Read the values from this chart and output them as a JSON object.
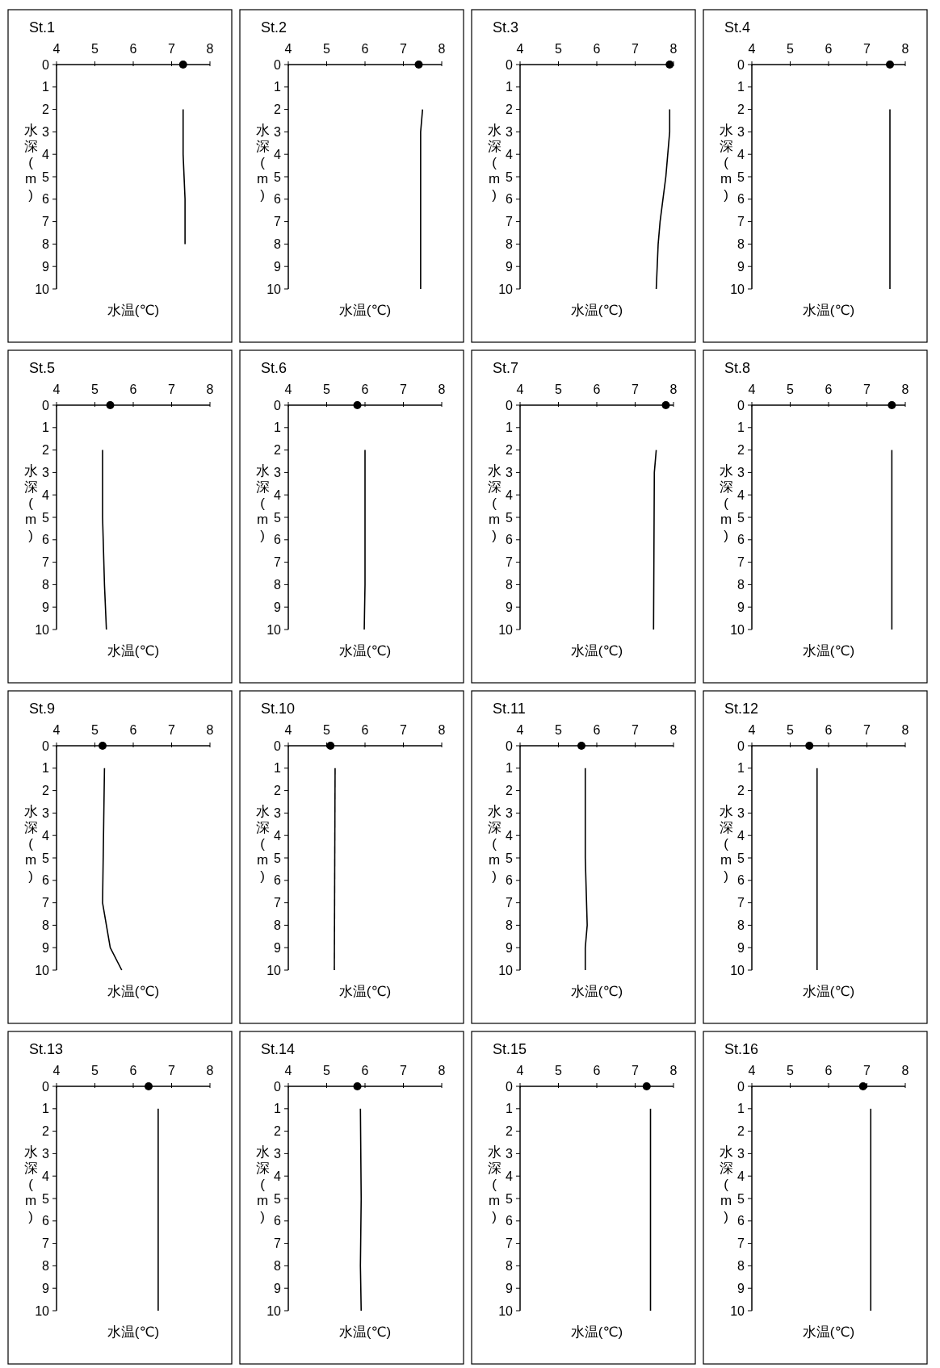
{
  "chart_data": [
    {
      "type": "line",
      "title": "St.1",
      "xlabel": "水温(℃)",
      "ylabel": "水深(m)",
      "xlim": [
        4,
        8
      ],
      "xticks": [
        4,
        5,
        6,
        7,
        8
      ],
      "ylim": [
        10,
        0
      ],
      "yticks": [
        0,
        1,
        2,
        3,
        4,
        5,
        6,
        7,
        8,
        9,
        10
      ],
      "grid": false,
      "series": [
        {
          "type": "scatter",
          "marker": "circle",
          "color": "#000000",
          "x": [
            7.3
          ],
          "values": [
            0
          ]
        },
        {
          "type": "line",
          "marker": "none",
          "color": "#000000",
          "x": [
            7.3,
            7.3,
            7.35,
            7.35
          ],
          "values": [
            2,
            4,
            6,
            8
          ]
        }
      ]
    },
    {
      "type": "line",
      "title": "St.2",
      "xlabel": "水温(℃)",
      "ylabel": "水深(m)",
      "xlim": [
        4,
        8
      ],
      "xticks": [
        4,
        5,
        6,
        7,
        8
      ],
      "ylim": [
        10,
        0
      ],
      "yticks": [
        0,
        1,
        2,
        3,
        4,
        5,
        6,
        7,
        8,
        9,
        10
      ],
      "grid": false,
      "series": [
        {
          "type": "scatter",
          "marker": "circle",
          "color": "#000000",
          "x": [
            7.4
          ],
          "values": [
            0
          ]
        },
        {
          "type": "line",
          "marker": "none",
          "color": "#000000",
          "x": [
            7.5,
            7.45,
            7.45
          ],
          "values": [
            2,
            3,
            10
          ]
        }
      ]
    },
    {
      "type": "line",
      "title": "St.3",
      "xlabel": "水温(℃)",
      "ylabel": "水深(m)",
      "xlim": [
        4,
        8
      ],
      "xticks": [
        4,
        5,
        6,
        7,
        8
      ],
      "ylim": [
        10,
        0
      ],
      "yticks": [
        0,
        1,
        2,
        3,
        4,
        5,
        6,
        7,
        8,
        9,
        10
      ],
      "grid": false,
      "series": [
        {
          "type": "scatter",
          "marker": "circle",
          "color": "#000000",
          "x": [
            7.9
          ],
          "values": [
            0
          ]
        },
        {
          "type": "line",
          "marker": "none",
          "color": "#000000",
          "x": [
            7.9,
            7.9,
            7.8,
            7.65,
            7.6,
            7.55
          ],
          "values": [
            2,
            3,
            5,
            7,
            8,
            10
          ]
        }
      ]
    },
    {
      "type": "line",
      "title": "St.4",
      "xlabel": "水温(℃)",
      "ylabel": "水深(m)",
      "xlim": [
        4,
        8
      ],
      "xticks": [
        4,
        5,
        6,
        7,
        8
      ],
      "ylim": [
        10,
        0
      ],
      "yticks": [
        0,
        1,
        2,
        3,
        4,
        5,
        6,
        7,
        8,
        9,
        10
      ],
      "grid": false,
      "series": [
        {
          "type": "scatter",
          "marker": "circle",
          "color": "#000000",
          "x": [
            7.6
          ],
          "values": [
            0
          ]
        },
        {
          "type": "line",
          "marker": "none",
          "color": "#000000",
          "x": [
            7.6,
            7.6
          ],
          "values": [
            2,
            10
          ]
        }
      ]
    },
    {
      "type": "line",
      "title": "St.5",
      "xlabel": "水温(℃)",
      "ylabel": "水深(m)",
      "xlim": [
        4,
        8
      ],
      "xticks": [
        4,
        5,
        6,
        7,
        8
      ],
      "ylim": [
        10,
        0
      ],
      "yticks": [
        0,
        1,
        2,
        3,
        4,
        5,
        6,
        7,
        8,
        9,
        10
      ],
      "grid": false,
      "series": [
        {
          "type": "scatter",
          "marker": "circle",
          "color": "#000000",
          "x": [
            5.4
          ],
          "values": [
            0
          ]
        },
        {
          "type": "line",
          "marker": "none",
          "color": "#000000",
          "x": [
            5.2,
            5.2,
            5.25,
            5.3
          ],
          "values": [
            2,
            5,
            8,
            10
          ]
        }
      ]
    },
    {
      "type": "line",
      "title": "St.6",
      "xlabel": "水温(℃)",
      "ylabel": "水深(m)",
      "xlim": [
        4,
        8
      ],
      "xticks": [
        4,
        5,
        6,
        7,
        8
      ],
      "ylim": [
        10,
        0
      ],
      "yticks": [
        0,
        1,
        2,
        3,
        4,
        5,
        6,
        7,
        8,
        9,
        10
      ],
      "grid": false,
      "series": [
        {
          "type": "scatter",
          "marker": "circle",
          "color": "#000000",
          "x": [
            5.8
          ],
          "values": [
            0
          ]
        },
        {
          "type": "line",
          "marker": "none",
          "color": "#000000",
          "x": [
            6.0,
            6.0,
            5.98
          ],
          "values": [
            2,
            8,
            10
          ]
        }
      ]
    },
    {
      "type": "line",
      "title": "St.7",
      "xlabel": "水温(℃)",
      "ylabel": "水深(m)",
      "xlim": [
        4,
        8
      ],
      "xticks": [
        4,
        5,
        6,
        7,
        8
      ],
      "ylim": [
        10,
        0
      ],
      "yticks": [
        0,
        1,
        2,
        3,
        4,
        5,
        6,
        7,
        8,
        9,
        10
      ],
      "grid": false,
      "series": [
        {
          "type": "scatter",
          "marker": "circle",
          "color": "#000000",
          "x": [
            7.8
          ],
          "values": [
            0
          ]
        },
        {
          "type": "line",
          "marker": "none",
          "color": "#000000",
          "x": [
            7.55,
            7.5,
            7.48
          ],
          "values": [
            2,
            3,
            10
          ]
        }
      ]
    },
    {
      "type": "line",
      "title": "St.8",
      "xlabel": "水温(℃)",
      "ylabel": "水深(m)",
      "xlim": [
        4,
        8
      ],
      "xticks": [
        4,
        5,
        6,
        7,
        8
      ],
      "ylim": [
        10,
        0
      ],
      "yticks": [
        0,
        1,
        2,
        3,
        4,
        5,
        6,
        7,
        8,
        9,
        10
      ],
      "grid": false,
      "series": [
        {
          "type": "scatter",
          "marker": "circle",
          "color": "#000000",
          "x": [
            7.65
          ],
          "values": [
            0
          ]
        },
        {
          "type": "line",
          "marker": "none",
          "color": "#000000",
          "x": [
            7.65,
            7.65
          ],
          "values": [
            2,
            10
          ]
        }
      ]
    },
    {
      "type": "line",
      "title": "St.9",
      "xlabel": "水温(℃)",
      "ylabel": "水深(m)",
      "xlim": [
        4,
        8
      ],
      "xticks": [
        4,
        5,
        6,
        7,
        8
      ],
      "ylim": [
        10,
        0
      ],
      "yticks": [
        0,
        1,
        2,
        3,
        4,
        5,
        6,
        7,
        8,
        9,
        10
      ],
      "grid": false,
      "series": [
        {
          "type": "scatter",
          "marker": "circle",
          "color": "#000000",
          "x": [
            5.2
          ],
          "values": [
            0
          ]
        },
        {
          "type": "line",
          "marker": "none",
          "color": "#000000",
          "x": [
            5.25,
            5.2,
            5.3,
            5.4,
            5.7
          ],
          "values": [
            1,
            7,
            8,
            9,
            10
          ]
        }
      ]
    },
    {
      "type": "line",
      "title": "St.10",
      "xlabel": "水温(℃)",
      "ylabel": "水深(m)",
      "xlim": [
        4,
        8
      ],
      "xticks": [
        4,
        5,
        6,
        7,
        8
      ],
      "ylim": [
        10,
        0
      ],
      "yticks": [
        0,
        1,
        2,
        3,
        4,
        5,
        6,
        7,
        8,
        9,
        10
      ],
      "grid": false,
      "series": [
        {
          "type": "scatter",
          "marker": "circle",
          "color": "#000000",
          "x": [
            5.1
          ],
          "values": [
            0
          ]
        },
        {
          "type": "line",
          "marker": "none",
          "color": "#000000",
          "x": [
            5.22,
            5.2
          ],
          "values": [
            1,
            10
          ]
        }
      ]
    },
    {
      "type": "line",
      "title": "St.11",
      "xlabel": "水温(℃)",
      "ylabel": "水深(m)",
      "xlim": [
        4,
        8
      ],
      "xticks": [
        4,
        5,
        6,
        7,
        8
      ],
      "ylim": [
        10,
        0
      ],
      "yticks": [
        0,
        1,
        2,
        3,
        4,
        5,
        6,
        7,
        8,
        9,
        10
      ],
      "grid": false,
      "series": [
        {
          "type": "scatter",
          "marker": "circle",
          "color": "#000000",
          "x": [
            5.6
          ],
          "values": [
            0
          ]
        },
        {
          "type": "line",
          "marker": "none",
          "color": "#000000",
          "x": [
            5.7,
            5.7,
            5.75,
            5.7,
            5.7
          ],
          "values": [
            1,
            5,
            8,
            9,
            10
          ]
        }
      ]
    },
    {
      "type": "line",
      "title": "St.12",
      "xlabel": "水温(℃)",
      "ylabel": "水深(m)",
      "xlim": [
        4,
        8
      ],
      "xticks": [
        4,
        5,
        6,
        7,
        8
      ],
      "ylim": [
        10,
        0
      ],
      "yticks": [
        0,
        1,
        2,
        3,
        4,
        5,
        6,
        7,
        8,
        9,
        10
      ],
      "grid": false,
      "series": [
        {
          "type": "scatter",
          "marker": "circle",
          "color": "#000000",
          "x": [
            5.5
          ],
          "values": [
            0
          ]
        },
        {
          "type": "line",
          "marker": "none",
          "color": "#000000",
          "x": [
            5.7,
            5.7
          ],
          "values": [
            1,
            10
          ]
        }
      ]
    },
    {
      "type": "line",
      "title": "St.13",
      "xlabel": "水温(℃)",
      "ylabel": "水深(m)",
      "xlim": [
        4,
        8
      ],
      "xticks": [
        4,
        5,
        6,
        7,
        8
      ],
      "ylim": [
        10,
        0
      ],
      "yticks": [
        0,
        1,
        2,
        3,
        4,
        5,
        6,
        7,
        8,
        9,
        10
      ],
      "grid": false,
      "series": [
        {
          "type": "scatter",
          "marker": "circle",
          "color": "#000000",
          "x": [
            6.4
          ],
          "values": [
            0
          ]
        },
        {
          "type": "line",
          "marker": "none",
          "color": "#000000",
          "x": [
            6.65,
            6.65
          ],
          "values": [
            1,
            10
          ]
        }
      ]
    },
    {
      "type": "line",
      "title": "St.14",
      "xlabel": "水温(℃)",
      "ylabel": "水深(m)",
      "xlim": [
        4,
        8
      ],
      "xticks": [
        4,
        5,
        6,
        7,
        8
      ],
      "ylim": [
        10,
        0
      ],
      "yticks": [
        0,
        1,
        2,
        3,
        4,
        5,
        6,
        7,
        8,
        9,
        10
      ],
      "grid": false,
      "series": [
        {
          "type": "scatter",
          "marker": "circle",
          "color": "#000000",
          "x": [
            5.8
          ],
          "values": [
            0
          ]
        },
        {
          "type": "line",
          "marker": "none",
          "color": "#000000",
          "x": [
            5.88,
            5.9,
            5.88,
            5.9
          ],
          "values": [
            1,
            5,
            8,
            10
          ]
        }
      ]
    },
    {
      "type": "line",
      "title": "St.15",
      "xlabel": "水温(℃)",
      "ylabel": "水深(m)",
      "xlim": [
        4,
        8
      ],
      "xticks": [
        4,
        5,
        6,
        7,
        8
      ],
      "ylim": [
        10,
        0
      ],
      "yticks": [
        0,
        1,
        2,
        3,
        4,
        5,
        6,
        7,
        8,
        9,
        10
      ],
      "grid": false,
      "series": [
        {
          "type": "scatter",
          "marker": "circle",
          "color": "#000000",
          "x": [
            7.3
          ],
          "values": [
            0
          ]
        },
        {
          "type": "line",
          "marker": "none",
          "color": "#000000",
          "x": [
            7.4,
            7.4
          ],
          "values": [
            1,
            10
          ]
        }
      ]
    },
    {
      "type": "line",
      "title": "St.16",
      "xlabel": "水温(℃)",
      "ylabel": "水深(m)",
      "xlim": [
        4,
        8
      ],
      "xticks": [
        4,
        5,
        6,
        7,
        8
      ],
      "ylim": [
        10,
        0
      ],
      "yticks": [
        0,
        1,
        2,
        3,
        4,
        5,
        6,
        7,
        8,
        9,
        10
      ],
      "grid": false,
      "series": [
        {
          "type": "scatter",
          "marker": "circle",
          "color": "#000000",
          "x": [
            6.9
          ],
          "values": [
            0
          ]
        },
        {
          "type": "line",
          "marker": "none",
          "color": "#000000",
          "x": [
            7.1,
            7.1
          ],
          "values": [
            1,
            10
          ]
        }
      ]
    }
  ]
}
